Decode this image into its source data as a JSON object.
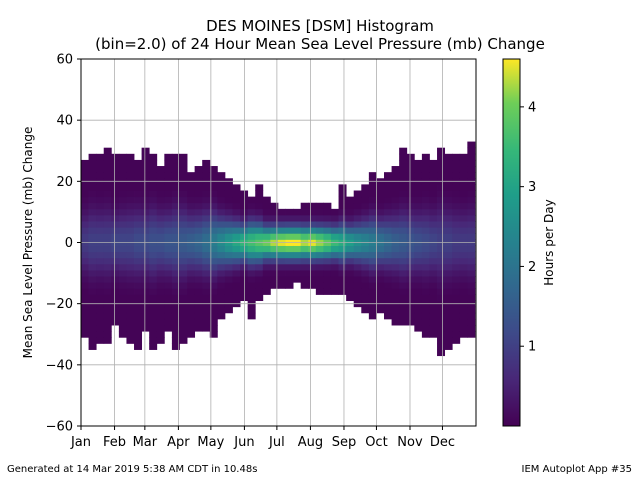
{
  "title_line1": "DES MOINES [DSM] Histogram",
  "title_line2": "(bin=2.0) of 24 Hour Mean Sea Level Pressure (mb) Change",
  "footer_left": "Generated at 14 Mar 2019 5:38 AM CDT in 10.48s",
  "footer_right": "IEM Autoplot App #35",
  "chart_data": {
    "type": "heatmap",
    "xlabel": "",
    "ylabel": "Mean Sea Level Pressure (mb) Change",
    "colorbar_label": "Hours per Day",
    "colormap": "viridis",
    "xlim": [
      1,
      366
    ],
    "ylim": [
      -60,
      60
    ],
    "yticks": [
      -60,
      -40,
      -20,
      0,
      20,
      40,
      60
    ],
    "xticks": [
      {
        "label": "Jan",
        "day": 1
      },
      {
        "label": "Feb",
        "day": 32
      },
      {
        "label": "Mar",
        "day": 60
      },
      {
        "label": "Apr",
        "day": 91
      },
      {
        "label": "May",
        "day": 121
      },
      {
        "label": "Jun",
        "day": 152
      },
      {
        "label": "Jul",
        "day": 182
      },
      {
        "label": "Aug",
        "day": 213
      },
      {
        "label": "Sep",
        "day": 244
      },
      {
        "label": "Oct",
        "day": 274
      },
      {
        "label": "Nov",
        "day": 305
      },
      {
        "label": "Dec",
        "day": 335
      }
    ],
    "colorbar_range": [
      0,
      4.6
    ],
    "colorbar_ticks": [
      1,
      2,
      3,
      4
    ],
    "grid": true,
    "bin_size_mb": 2.0,
    "column_width_days": 7,
    "column_extents": {
      "week_start_day": [
        1,
        8,
        15,
        22,
        29,
        36,
        43,
        50,
        57,
        64,
        71,
        78,
        85,
        92,
        99,
        106,
        113,
        120,
        127,
        134,
        141,
        148,
        155,
        162,
        169,
        176,
        183,
        190,
        197,
        204,
        211,
        218,
        225,
        232,
        239,
        246,
        253,
        260,
        267,
        274,
        281,
        288,
        295,
        302,
        309,
        316,
        323,
        330,
        337,
        344,
        351,
        358
      ],
      "max_mb": [
        27,
        29,
        29,
        31,
        29,
        29,
        29,
        27,
        31,
        29,
        25,
        29,
        29,
        29,
        23,
        25,
        27,
        25,
        23,
        21,
        19,
        17,
        15,
        19,
        15,
        13,
        11,
        11,
        11,
        13,
        13,
        13,
        13,
        11,
        19,
        15,
        17,
        19,
        23,
        21,
        23,
        25,
        31,
        29,
        27,
        29,
        27,
        31,
        29,
        29,
        29,
        33
      ],
      "min_mb": [
        -31,
        -35,
        -33,
        -33,
        -27,
        -31,
        -33,
        -35,
        -29,
        -35,
        -33,
        -29,
        -35,
        -33,
        -31,
        -29,
        -29,
        -31,
        -25,
        -23,
        -21,
        -19,
        -25,
        -19,
        -17,
        -15,
        -15,
        -15,
        -13,
        -15,
        -15,
        -17,
        -17,
        -17,
        -17,
        -19,
        -21,
        -23,
        -25,
        -23,
        -25,
        -27,
        -27,
        -27,
        -29,
        -31,
        -31,
        -37,
        -35,
        -33,
        -31,
        -31
      ],
      "peak_hours_per_day": [
        0.9,
        1.0,
        1.0,
        1.0,
        1.1,
        1.1,
        1.1,
        1.2,
        1.2,
        1.3,
        1.3,
        1.4,
        1.4,
        1.5,
        1.6,
        1.7,
        1.9,
        2.2,
        2.5,
        2.8,
        3.1,
        3.4,
        3.6,
        3.8,
        4.0,
        4.3,
        4.5,
        4.6,
        4.6,
        4.3,
        4.5,
        4.2,
        3.9,
        3.5,
        3.2,
        2.9,
        2.6,
        2.4,
        2.2,
        2.0,
        1.8,
        1.6,
        1.5,
        1.4,
        1.3,
        1.2,
        1.1,
        1.0,
        1.0,
        0.9,
        0.9,
        0.9
      ]
    }
  }
}
